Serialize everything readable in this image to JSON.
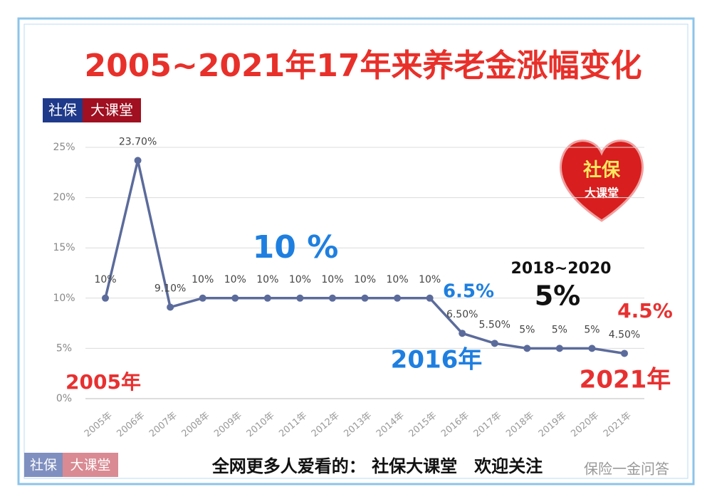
{
  "chart_data": {
    "type": "line",
    "title": "2005~2021年17年来养老金涨幅变化",
    "categories": [
      "2005年",
      "2006年",
      "2007年",
      "2008年",
      "2009年",
      "2010年",
      "2011年",
      "2012年",
      "2013年",
      "2014年",
      "2015年",
      "2016年",
      "2017年",
      "2018年",
      "2019年",
      "2020年",
      "2021年"
    ],
    "values": [
      10,
      23.7,
      9.1,
      10,
      10,
      10,
      10,
      10,
      10,
      10,
      10,
      6.5,
      5.5,
      5,
      5,
      5,
      4.5
    ],
    "value_labels": [
      "10%",
      "23.70%",
      "9.10%",
      "10%",
      "10%",
      "10%",
      "10%",
      "10%",
      "10%",
      "10%",
      "10%",
      "6.50%",
      "5.50%",
      "5%",
      "5%",
      "5%",
      "4.50%"
    ],
    "color": "#5b6b9b",
    "ylim": [
      0,
      25
    ],
    "yticks": [
      {
        "value": 0,
        "label": "0%"
      },
      {
        "value": 5,
        "label": "5%"
      },
      {
        "value": 10,
        "label": "10%"
      },
      {
        "value": 15,
        "label": "15%"
      },
      {
        "value": 20,
        "label": "20%"
      },
      {
        "value": 25,
        "label": "25%"
      }
    ],
    "grid": true,
    "annotations": [
      {
        "text": "10 %",
        "color": "#1e7fe0"
      },
      {
        "text": "6.5%",
        "color": "#1e7fe0"
      },
      {
        "text": "2016年",
        "color": "#1e7fe0"
      },
      {
        "text": "2018~2020",
        "color": "#111111"
      },
      {
        "text": "5%",
        "color": "#111111"
      },
      {
        "text": "4.5%",
        "color": "#e83030"
      },
      {
        "text": "2021年",
        "color": "#e83030"
      },
      {
        "text": "2005年",
        "color": "#e83030"
      }
    ]
  },
  "header_badge": [
    "社保",
    "大课堂"
  ],
  "logo": [
    "社保",
    "大课堂"
  ],
  "footer_badge": [
    "社保",
    "大课堂"
  ],
  "footer": {
    "text": "全网更多人爱看的： 社保大课堂　欢迎关注",
    "watermark": "保险一金问答"
  }
}
